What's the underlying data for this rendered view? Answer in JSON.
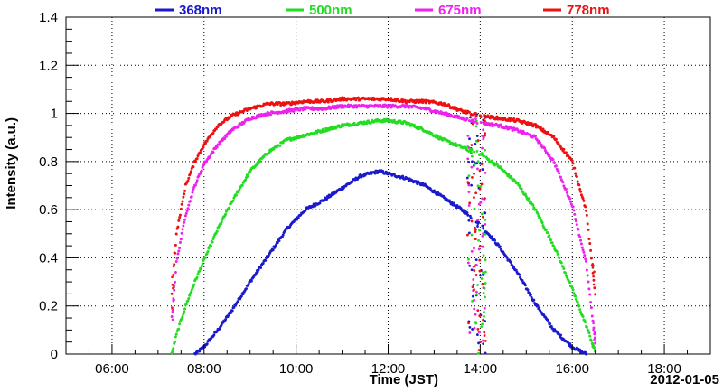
{
  "chart_data": {
    "type": "scatter",
    "xlabel": "Time (JST)",
    "ylabel": "Intensity (a.u.)",
    "date_label": "2012-01-05",
    "xlim": [
      5.0,
      19.0
    ],
    "ylim": [
      0,
      1.4
    ],
    "x_ticks": [
      6,
      8,
      10,
      12,
      14,
      16,
      18
    ],
    "x_tick_labels": [
      "06:00",
      "08:00",
      "10:00",
      "12:00",
      "14:00",
      "16:00",
      "18:00"
    ],
    "y_ticks": [
      0,
      0.2,
      0.4,
      0.6,
      0.8,
      1.0,
      1.2,
      1.4
    ],
    "y_tick_labels": [
      "0",
      "0.2",
      "0.4",
      "0.6",
      "0.8",
      "1",
      "1.2",
      "1.4"
    ],
    "grid": true,
    "legend_position": "top",
    "series": [
      {
        "name": "368nm",
        "color": "#1a1acc",
        "x": [
          7.8,
          8.0,
          8.3,
          8.6,
          9.0,
          9.4,
          9.8,
          10.2,
          10.6,
          11.0,
          11.4,
          11.8,
          12.0,
          12.4,
          12.8,
          13.2,
          13.6,
          14.0,
          14.4,
          14.8,
          15.2,
          15.6,
          16.0,
          16.3
        ],
        "y": [
          0.0,
          0.03,
          0.1,
          0.18,
          0.3,
          0.41,
          0.52,
          0.6,
          0.64,
          0.69,
          0.74,
          0.76,
          0.75,
          0.73,
          0.7,
          0.65,
          0.6,
          0.54,
          0.45,
          0.34,
          0.21,
          0.1,
          0.03,
          0.0
        ]
      },
      {
        "name": "500nm",
        "color": "#22dd22",
        "x": [
          7.3,
          7.4,
          7.6,
          7.8,
          8.0,
          8.3,
          8.6,
          9.0,
          9.4,
          9.8,
          10.2,
          10.6,
          11.0,
          11.4,
          11.8,
          12.0,
          12.4,
          12.8,
          13.2,
          13.6,
          14.0,
          14.4,
          14.8,
          15.2,
          15.6,
          16.0,
          16.3,
          16.5
        ],
        "y": [
          0.0,
          0.08,
          0.2,
          0.3,
          0.39,
          0.52,
          0.63,
          0.76,
          0.84,
          0.89,
          0.91,
          0.93,
          0.95,
          0.96,
          0.97,
          0.97,
          0.96,
          0.93,
          0.89,
          0.86,
          0.83,
          0.78,
          0.71,
          0.6,
          0.45,
          0.27,
          0.12,
          0.01
        ]
      },
      {
        "name": "675nm",
        "color": "#ee22ee",
        "x": [
          7.3,
          7.4,
          7.6,
          7.8,
          8.0,
          8.3,
          8.6,
          9.0,
          9.4,
          9.8,
          10.2,
          10.6,
          11.0,
          11.4,
          11.8,
          12.0,
          12.4,
          12.8,
          13.2,
          13.6,
          14.0,
          14.4,
          14.8,
          15.2,
          15.6,
          16.0,
          16.3,
          16.5
        ],
        "y": [
          0.15,
          0.38,
          0.58,
          0.7,
          0.79,
          0.87,
          0.93,
          0.98,
          1.0,
          1.01,
          1.02,
          1.02,
          1.03,
          1.03,
          1.03,
          1.03,
          1.03,
          1.02,
          1.0,
          0.98,
          0.96,
          0.95,
          0.93,
          0.9,
          0.8,
          0.62,
          0.38,
          0.05
        ]
      },
      {
        "name": "778nm",
        "color": "#ee1111",
        "x": [
          7.3,
          7.4,
          7.6,
          7.8,
          8.0,
          8.3,
          8.6,
          9.0,
          9.4,
          9.8,
          10.2,
          10.6,
          11.0,
          11.4,
          11.8,
          12.0,
          12.4,
          12.8,
          13.2,
          13.6,
          14.0,
          14.4,
          14.8,
          15.2,
          15.6,
          16.0,
          16.3,
          16.5
        ],
        "y": [
          0.25,
          0.5,
          0.7,
          0.8,
          0.87,
          0.95,
          0.99,
          1.02,
          1.04,
          1.04,
          1.05,
          1.05,
          1.06,
          1.06,
          1.06,
          1.06,
          1.05,
          1.05,
          1.04,
          1.01,
          0.99,
          0.98,
          0.97,
          0.95,
          0.9,
          0.8,
          0.6,
          0.25
        ]
      }
    ],
    "scatter_cluster": {
      "x_range": [
        13.72,
        14.12
      ],
      "y_range": [
        0.0,
        1.0
      ]
    }
  }
}
